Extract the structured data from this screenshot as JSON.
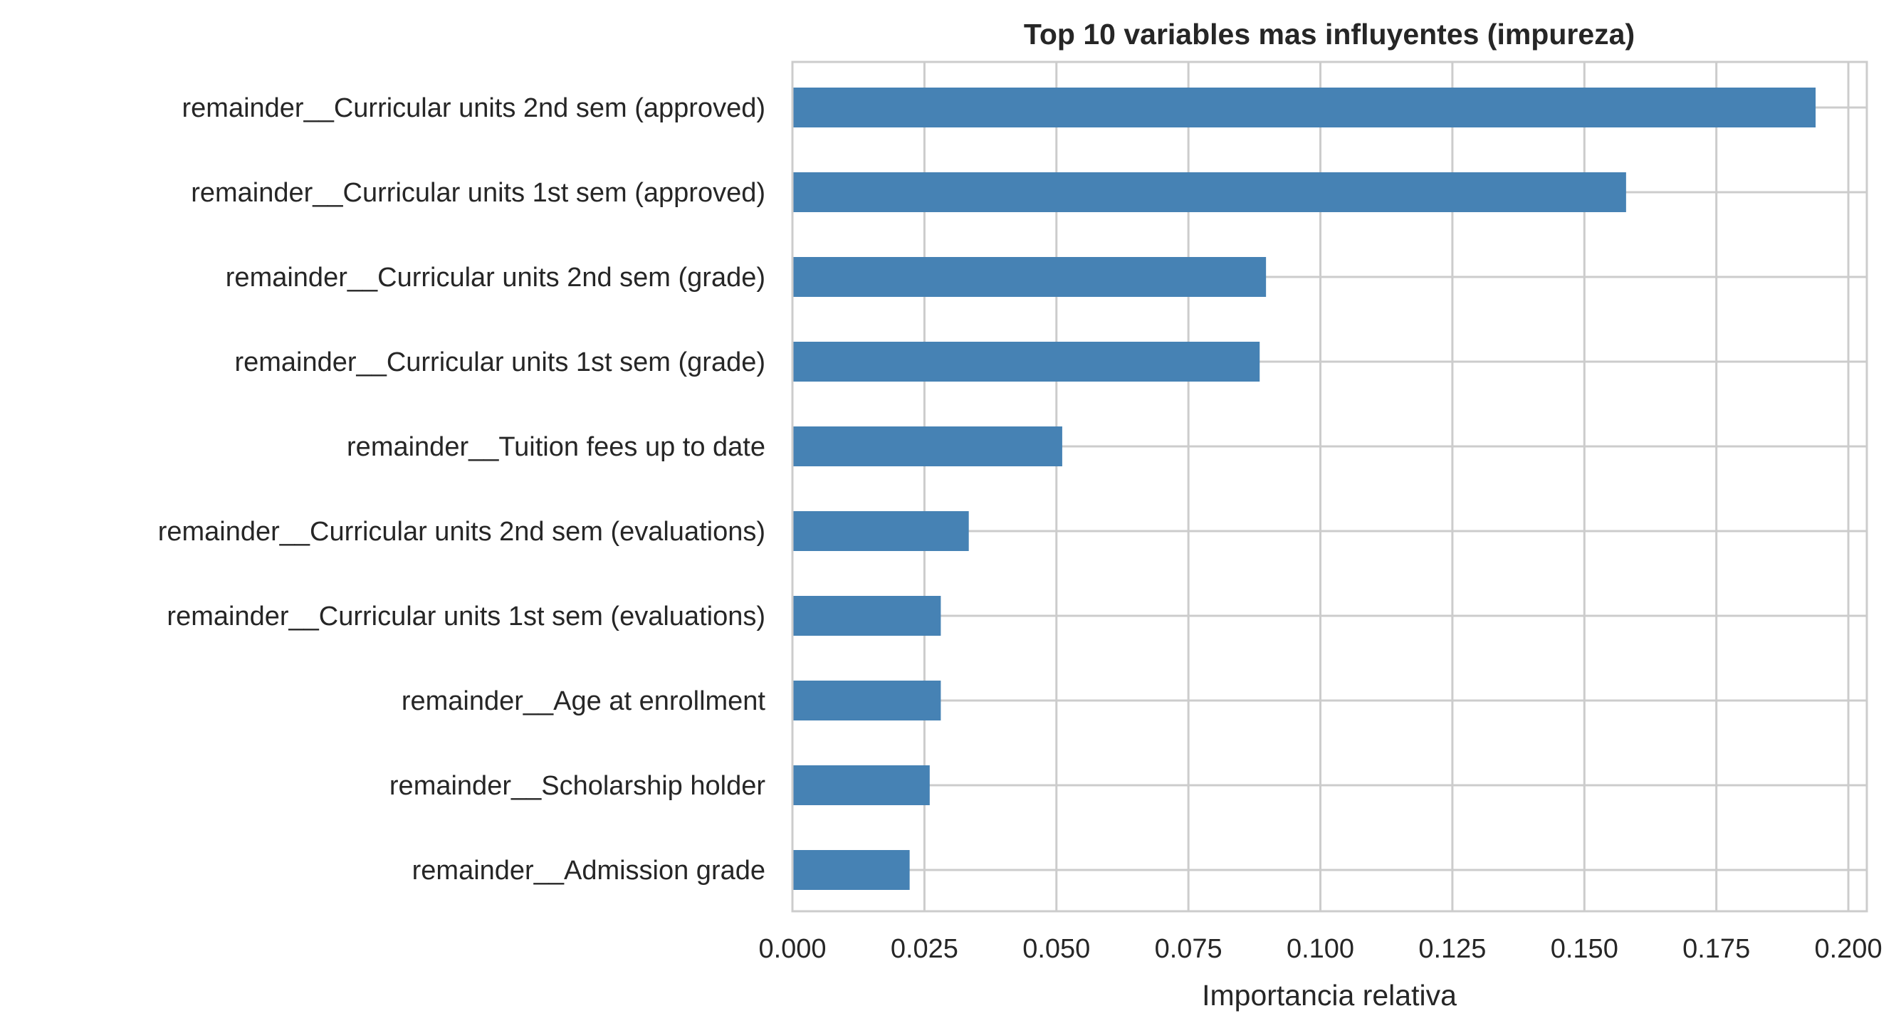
{
  "chart_data": {
    "type": "bar",
    "orientation": "horizontal",
    "title": "Top 10 variables mas influyentes (impureza)",
    "xlabel": "Importancia relativa",
    "ylabel": "",
    "categories": [
      "remainder__Curricular units 2nd sem (approved)",
      "remainder__Curricular units 1st sem (approved)",
      "remainder__Curricular units 2nd sem (grade)",
      "remainder__Curricular units 1st sem (grade)",
      "remainder__Tuition fees up to date",
      "remainder__Curricular units 2nd sem (evaluations)",
      "remainder__Curricular units 1st sem (evaluations)",
      "remainder__Age at enrollment",
      "remainder__Scholarship holder",
      "remainder__Admission grade"
    ],
    "values": [
      0.1938,
      0.1579,
      0.0897,
      0.0885,
      0.0511,
      0.0334,
      0.0281,
      0.0281,
      0.026,
      0.0222
    ],
    "xlim": [
      0,
      0.2035
    ],
    "xticks": [
      0.0,
      0.025,
      0.05,
      0.075,
      0.1,
      0.125,
      0.15,
      0.175,
      0.2
    ],
    "xtick_labels": [
      "0.000",
      "0.025",
      "0.050",
      "0.075",
      "0.100",
      "0.125",
      "0.150",
      "0.175",
      "0.200"
    ],
    "grid": true,
    "bar_color": "#4682b4",
    "grid_color": "#cccccc",
    "frame_color": "#cccccc"
  }
}
